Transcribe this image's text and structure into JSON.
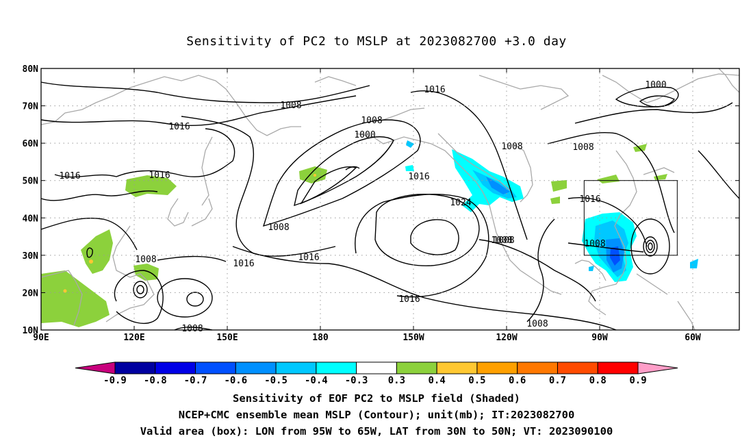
{
  "title": "Sensitivity of PC2 to MSLP at 2023082700 +3.0 day",
  "map": {
    "lat_labels": [
      "80N",
      "70N",
      "60N",
      "50N",
      "40N",
      "30N",
      "20N",
      "10N"
    ],
    "lon_labels": [
      "90E",
      "120E",
      "150E",
      "180",
      "150W",
      "120W",
      "90W",
      "60W"
    ],
    "contour_labels": [
      "1016",
      "1008",
      "1000",
      "1008",
      "1016",
      "1008",
      "1000",
      "1016",
      "1016",
      "1008",
      "1008",
      "1016",
      "1024",
      "1016",
      "1008",
      "1008",
      "1008",
      "1016",
      "1016",
      "1016",
      "1008",
      "1008",
      "1008"
    ],
    "box": {
      "lon_west": -95,
      "lon_east": -65,
      "lat_south": 30,
      "lat_north": 50
    }
  },
  "colorbar": {
    "labels": [
      "-0.9",
      "-0.8",
      "-0.7",
      "-0.6",
      "-0.5",
      "-0.4",
      "-0.3",
      "0.3",
      "0.4",
      "0.5",
      "0.6",
      "0.7",
      "0.8",
      "0.9"
    ],
    "colors": [
      "#0000a0",
      "#0000e6",
      "#0050ff",
      "#0090ff",
      "#00c8ff",
      "#00ffff",
      "#ffffff",
      "#8cd13c",
      "#ffc832",
      "#ffa000",
      "#ff7800",
      "#ff4b00",
      "#ff0000"
    ],
    "low_end_color": "#c8007d",
    "high_end_color": "#ff9ec8",
    "positive_color": "#8cd13c",
    "negative_color": "#00c8ff"
  },
  "captions": [
    "Sensitivity of EOF PC2 to MSLP field (Shaded)",
    "NCEP+CMC ensemble mean MSLP (Contour); unit(mb); IT:2023082700",
    "Valid area (box): LON from 95W to 65W, LAT from 30N to 50N; VT: 2023090100"
  ]
}
